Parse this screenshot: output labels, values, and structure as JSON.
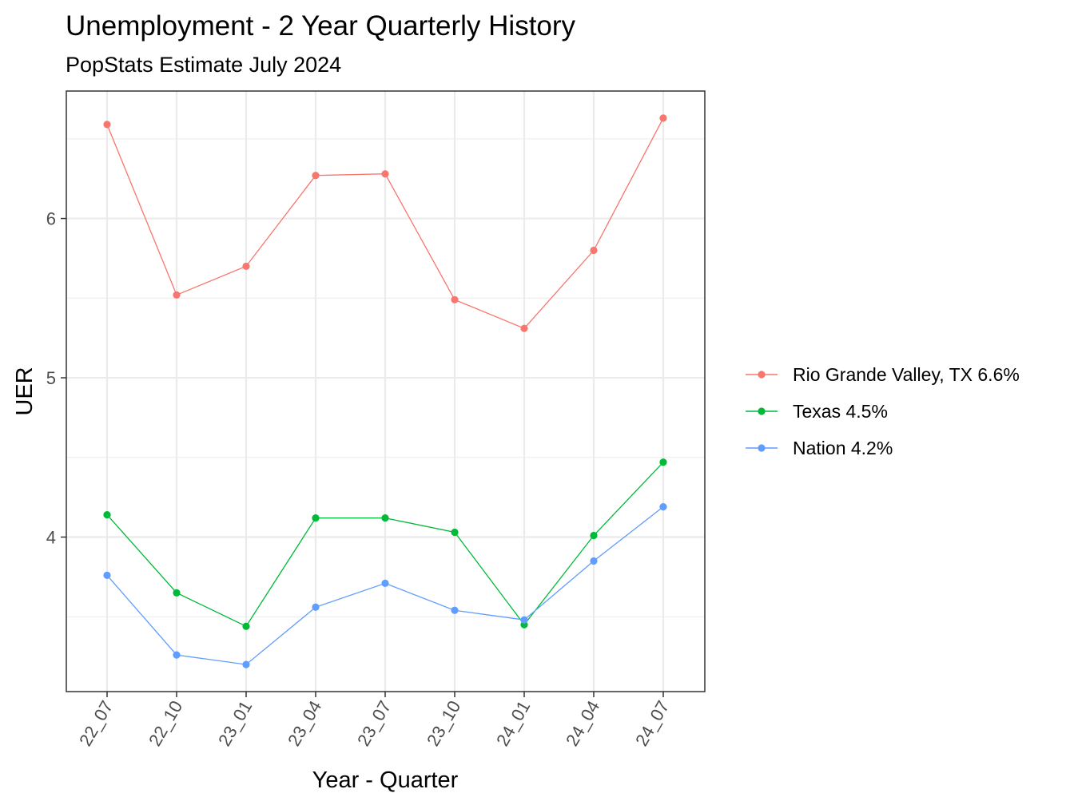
{
  "chart_data": {
    "type": "line",
    "title": "Unemployment - 2 Year Quarterly History",
    "subtitle": "PopStats Estimate July 2024",
    "xlabel": "Year - Quarter",
    "ylabel": "UER",
    "categories": [
      "22_07",
      "22_10",
      "23_01",
      "23_04",
      "23_07",
      "23_10",
      "24_01",
      "24_04",
      "24_07"
    ],
    "yticks": [
      4,
      5,
      6
    ],
    "ylim": [
      3.03,
      6.8
    ],
    "grid": true,
    "legend_position": "right",
    "series": [
      {
        "name": "Rio Grande Valley, TX 6.6%",
        "color": "#F8766D",
        "values": [
          6.59,
          5.52,
          5.7,
          6.27,
          6.28,
          5.49,
          5.31,
          5.8,
          6.63
        ]
      },
      {
        "name": "Texas 4.5%",
        "color": "#00BA38",
        "values": [
          4.14,
          3.65,
          3.44,
          4.12,
          4.12,
          4.03,
          3.45,
          4.01,
          4.47
        ]
      },
      {
        "name": "Nation 4.2%",
        "color": "#619CFF",
        "values": [
          3.76,
          3.26,
          3.2,
          3.56,
          3.71,
          3.54,
          3.48,
          3.85,
          4.19
        ]
      }
    ]
  }
}
